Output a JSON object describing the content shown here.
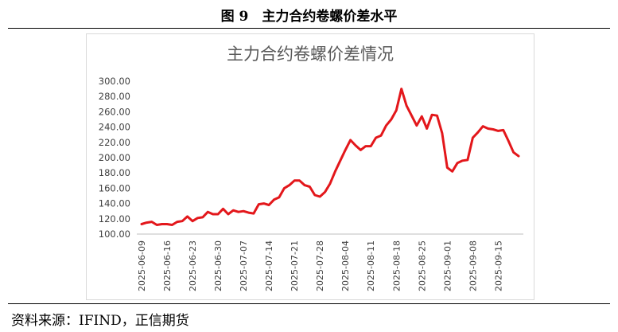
{
  "figure_title": "图 9　主力合约卷螺价差水平",
  "source_note": "资料来源：IFIND，正信期货",
  "chart_data": {
    "type": "line",
    "title": "主力合约卷螺价差情况",
    "xlabel": "",
    "ylabel": "",
    "ylim": [
      100,
      300
    ],
    "yticks": [
      "300.00",
      "280.00",
      "260.00",
      "240.00",
      "220.00",
      "200.00",
      "180.00",
      "160.00",
      "140.00",
      "120.00",
      "100.00"
    ],
    "xticks": [
      "2025-06-09",
      "2025-06-16",
      "2025-06-23",
      "2025-06-30",
      "2025-07-07",
      "2025-07-14",
      "2025-07-21",
      "2025-07-28",
      "2025-08-04",
      "2025-08-11",
      "2025-08-18",
      "2025-08-25",
      "2025-09-01",
      "2025-09-08",
      "2025-09-15"
    ],
    "grid": false,
    "legend": "none",
    "line_color": "#e3171b",
    "series": [
      {
        "values": [
          [
            "2025-06-09",
            113
          ],
          [
            "2025-06-10",
            115
          ],
          [
            "2025-06-11",
            116
          ],
          [
            "2025-06-12",
            112
          ],
          [
            "2025-06-13",
            113
          ],
          [
            "2025-06-16",
            113
          ],
          [
            "2025-06-17",
            112
          ],
          [
            "2025-06-18",
            116
          ],
          [
            "2025-06-19",
            117
          ],
          [
            "2025-06-20",
            123
          ],
          [
            "2025-06-23",
            117
          ],
          [
            "2025-06-24",
            121
          ],
          [
            "2025-06-25",
            122
          ],
          [
            "2025-06-26",
            129
          ],
          [
            "2025-06-27",
            126
          ],
          [
            "2025-06-30",
            126
          ],
          [
            "2025-07-01",
            133
          ],
          [
            "2025-07-02",
            126
          ],
          [
            "2025-07-03",
            131
          ],
          [
            "2025-07-04",
            129
          ],
          [
            "2025-07-07",
            130
          ],
          [
            "2025-07-08",
            128
          ],
          [
            "2025-07-09",
            127
          ],
          [
            "2025-07-10",
            139
          ],
          [
            "2025-07-11",
            140
          ],
          [
            "2025-07-14",
            138
          ],
          [
            "2025-07-15",
            145
          ],
          [
            "2025-07-16",
            148
          ],
          [
            "2025-07-17",
            160
          ],
          [
            "2025-07-18",
            164
          ],
          [
            "2025-07-21",
            170
          ],
          [
            "2025-07-22",
            170
          ],
          [
            "2025-07-23",
            164
          ],
          [
            "2025-07-24",
            162
          ],
          [
            "2025-07-25",
            151
          ],
          [
            "2025-07-28",
            149
          ],
          [
            "2025-07-29",
            155
          ],
          [
            "2025-07-30",
            166
          ],
          [
            "2025-07-31",
            182
          ],
          [
            "2025-08-01",
            196
          ],
          [
            "2025-08-04",
            210
          ],
          [
            "2025-08-05",
            223
          ],
          [
            "2025-08-06",
            216
          ],
          [
            "2025-08-07",
            210
          ],
          [
            "2025-08-08",
            215
          ],
          [
            "2025-08-11",
            215
          ],
          [
            "2025-08-12",
            226
          ],
          [
            "2025-08-13",
            229
          ],
          [
            "2025-08-14",
            242
          ],
          [
            "2025-08-15",
            250
          ],
          [
            "2025-08-18",
            262
          ],
          [
            "2025-08-19",
            290
          ],
          [
            "2025-08-20",
            268
          ],
          [
            "2025-08-21",
            255
          ],
          [
            "2025-08-22",
            242
          ],
          [
            "2025-08-25",
            254
          ],
          [
            "2025-08-26",
            238
          ],
          [
            "2025-08-27",
            256
          ],
          [
            "2025-08-28",
            255
          ],
          [
            "2025-08-29",
            232
          ],
          [
            "2025-09-01",
            187
          ],
          [
            "2025-09-02",
            182
          ],
          [
            "2025-09-03",
            193
          ],
          [
            "2025-09-04",
            196
          ],
          [
            "2025-09-05",
            197
          ],
          [
            "2025-09-08",
            226
          ],
          [
            "2025-09-09",
            233
          ],
          [
            "2025-09-10",
            241
          ],
          [
            "2025-09-11",
            238
          ],
          [
            "2025-09-12",
            237
          ],
          [
            "2025-09-15",
            235
          ],
          [
            "2025-09-16",
            236
          ],
          [
            "2025-09-17",
            222
          ],
          [
            "2025-09-18",
            207
          ],
          [
            "2025-09-19",
            202
          ]
        ]
      }
    ]
  }
}
